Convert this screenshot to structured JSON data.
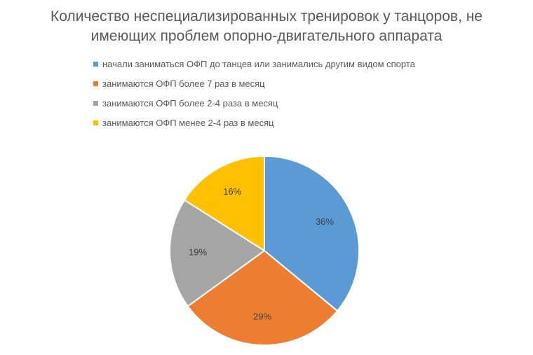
{
  "chart_data": {
    "type": "pie",
    "title_lines": [
      "Количество неспециализированных тренировок у танцоров, не",
      "имеющих проблем опорно-двигательного аппарата"
    ],
    "categories": [
      "начали заниматься ОФП до танцев или занимались другим видом спорта",
      "занимаются ОФП более 7 раз в месяц",
      "занимаются ОФП более 2-4 раза в месяц",
      "занимаются ОФП менее 2-4 раз в месяц"
    ],
    "values": [
      36,
      29,
      19,
      16
    ],
    "data_labels": [
      "36%",
      "29%",
      "19%",
      "16%"
    ],
    "colors": [
      "#5b9bd5",
      "#ed7d31",
      "#a5a5a5",
      "#ffc000"
    ],
    "start_angle": "12 o'clock",
    "direction": "clockwise",
    "legend_position": "top-left"
  }
}
